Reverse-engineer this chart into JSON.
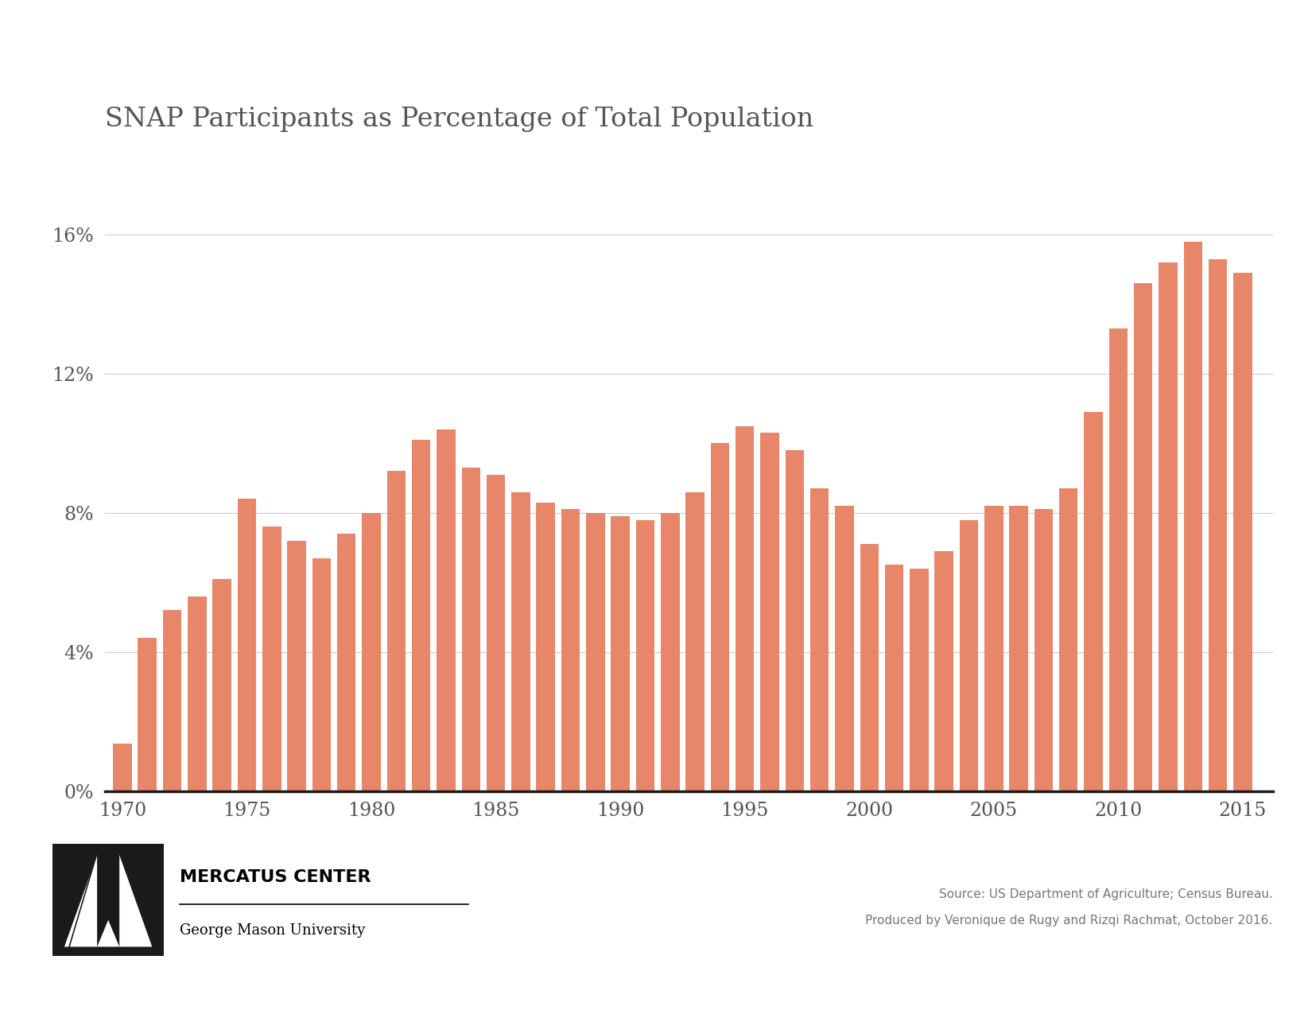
{
  "title": "SNAP Participants as Percentage of Total Population",
  "years": [
    1970,
    1971,
    1972,
    1973,
    1974,
    1975,
    1976,
    1977,
    1978,
    1979,
    1980,
    1981,
    1982,
    1983,
    1984,
    1985,
    1986,
    1987,
    1988,
    1989,
    1990,
    1991,
    1992,
    1993,
    1994,
    1995,
    1996,
    1997,
    1998,
    1999,
    2000,
    2001,
    2002,
    2003,
    2004,
    2005,
    2006,
    2007,
    2008,
    2009,
    2010,
    2011,
    2012,
    2013,
    2014,
    2015
  ],
  "values": [
    1.35,
    4.4,
    5.2,
    5.6,
    6.1,
    8.4,
    7.6,
    7.2,
    6.7,
    7.4,
    8.0,
    9.2,
    10.1,
    10.4,
    9.3,
    9.1,
    8.6,
    8.3,
    8.1,
    8.0,
    7.9,
    7.8,
    8.0,
    8.6,
    10.0,
    10.5,
    10.3,
    9.8,
    8.7,
    8.2,
    7.1,
    6.5,
    6.4,
    6.9,
    7.8,
    8.2,
    8.2,
    8.1,
    8.7,
    10.9,
    13.3,
    14.6,
    15.2,
    15.8,
    15.3,
    14.9
  ],
  "bar_color": "#E8866A",
  "background_color": "#FFFFFF",
  "ytick_labels": [
    "0%",
    "4%",
    "8%",
    "12%",
    "16%"
  ],
  "ytick_values": [
    0,
    4,
    8,
    12,
    16
  ],
  "xtick_labels": [
    "1970",
    "1975",
    "1980",
    "1985",
    "1990",
    "1995",
    "2000",
    "2005",
    "2010",
    "2015"
  ],
  "xtick_values": [
    1970,
    1975,
    1980,
    1985,
    1990,
    1995,
    2000,
    2005,
    2010,
    2015
  ],
  "ylim": [
    0,
    17.5
  ],
  "xlim": [
    1969.3,
    2016.2
  ],
  "grid_color": "#CCCCCC",
  "axis_line_color": "#1A1A1A",
  "title_fontsize": 24,
  "tick_fontsize": 17,
  "title_color": "#555555",
  "tick_color": "#555555",
  "source_line1": "Source: US Department of Agriculture; Census Bureau.",
  "source_line2": "Produced by Veronique de Rugy and Rizqi Rachmat, October 2016.",
  "mercatus_name": "MERCATUS CENTER",
  "mercatus_subtitle": "George Mason University",
  "logo_color": "#1a1a1a"
}
